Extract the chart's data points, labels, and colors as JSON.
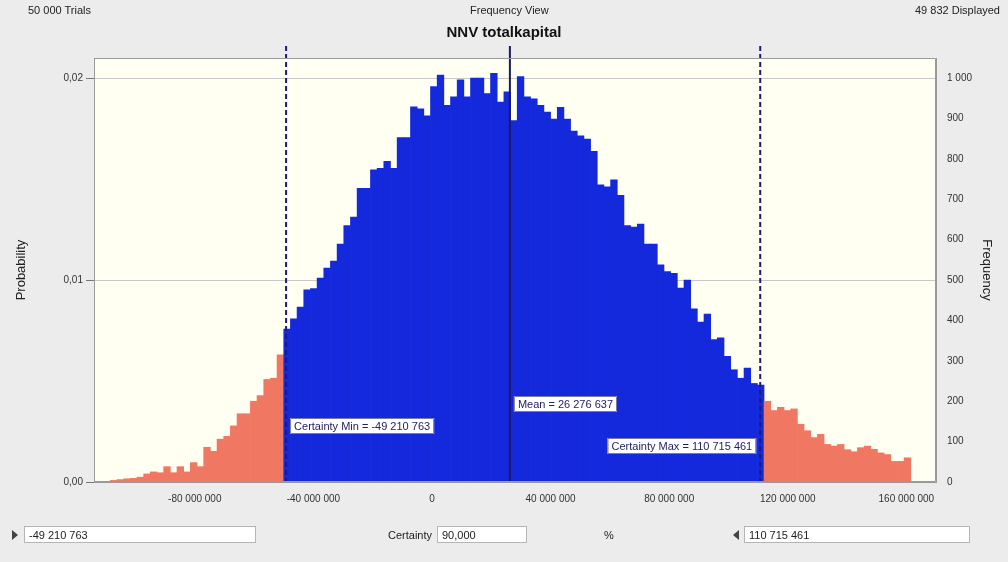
{
  "chart_data": {
    "type": "histogram",
    "title": "NNV totalkapital",
    "ylabel": "Probability",
    "y2label": "Frequency",
    "annotations": [
      "50 000 Trials",
      "Frequency View",
      "49 832 Displayed",
      "-49 210 763",
      "Certainty",
      "90,000",
      "%",
      "110 715 461"
    ],
    "bins": [
      -108500000,
      -106250000,
      -104000000,
      -101750000,
      -99500000,
      -97250000,
      -95000000,
      -92750000,
      -90500000,
      -88250000,
      -86000000,
      -83750000,
      -81500000,
      -79250000,
      -77000000,
      -74750000,
      -72500000,
      -70250000,
      -68000000,
      -65750000,
      -63500000,
      -61250000,
      -59000000,
      -56750000,
      -54500000,
      -52250000,
      -50000000,
      -47750000,
      -45500000,
      -43250000,
      -41000000,
      -38750000,
      -36500000,
      -34250000,
      -32000000,
      -29750000,
      -27500000,
      -25250000,
      -23000000,
      -20750000,
      -18500000,
      -16250000,
      -14000000,
      -11750000,
      -9500000,
      -7250000,
      -5000000,
      -2750000,
      -500000,
      1750000,
      4000000,
      6250000,
      8500000,
      10750000,
      13000000,
      15250000,
      17500000,
      19750000,
      22000000,
      24250000,
      26500000,
      28750000,
      31000000,
      33250000,
      35500000,
      37750000,
      40000000,
      42250000,
      44500000,
      46750000,
      49000000,
      51250000,
      53500000,
      55750000,
      58000000,
      60250000,
      62500000,
      64750000,
      67000000,
      69250000,
      71500000,
      73750000,
      76000000,
      78250000,
      80500000,
      82750000,
      85000000,
      87250000,
      89500000,
      91750000,
      94000000,
      96250000,
      98500000,
      100750000,
      103000000,
      105250000,
      107500000,
      109750000,
      112000000,
      114250000,
      116500000,
      118750000,
      121000000,
      123250000,
      125500000,
      127750000,
      130000000,
      132250000,
      134500000,
      136750000,
      139000000,
      141250000,
      143500000,
      145750000,
      148000000,
      150250000,
      152500000,
      154750000,
      157000000,
      159250000,
      161500000
    ],
    "series": [
      {
        "axis": "y2",
        "values": [
          4,
          6,
          8,
          9,
          12,
          20,
          25,
          23,
          38,
          23,
          38,
          25,
          48,
          38,
          86,
          76,
          106,
          113,
          139,
          169,
          169,
          200,
          214,
          254,
          257,
          315,
          379,
          404,
          433,
          476,
          479,
          505,
          530,
          547,
          589,
          635,
          656,
          727,
          727,
          773,
          777,
          794,
          777,
          853,
          853,
          929,
          924,
          907,
          979,
          1008,
          933,
          954,
          996,
          954,
          1000,
          1000,
          962,
          1012,
          941,
          966,
          895,
          1004,
          954,
          949,
          933,
          916,
          899,
          928,
          899,
          869,
          857,
          849,
          819,
          736,
          731,
          748,
          710,
          635,
          631,
          639,
          589,
          589,
          538,
          521,
          517,
          480,
          500,
          429,
          396,
          416,
          353,
          357,
          311,
          278,
          257,
          282,
          244,
          240,
          200,
          177,
          185,
          177,
          181,
          143,
          127,
          110,
          118,
          93,
          89,
          93,
          80,
          75,
          85,
          89,
          81,
          72,
          68,
          51,
          51,
          60
        ],
        "colors": [
          "#f07862",
          "#f07862",
          "#f07862",
          "#f07862",
          "#f07862",
          "#f07862",
          "#f07862",
          "#f07862",
          "#f07862",
          "#f07862",
          "#f07862",
          "#f07862",
          "#f07862",
          "#f07862",
          "#f07862",
          "#f07862",
          "#f07862",
          "#f07862",
          "#f07862",
          "#f07862",
          "#f07862",
          "#f07862",
          "#f07862",
          "#f07862",
          "#f07862",
          "#f07862",
          "#1428dc",
          "#1428dc",
          "#1428dc",
          "#1428dc",
          "#1428dc",
          "#1428dc",
          "#1428dc",
          "#1428dc",
          "#1428dc",
          "#1428dc",
          "#1428dc",
          "#1428dc",
          "#1428dc",
          "#1428dc",
          "#1428dc",
          "#1428dc",
          "#1428dc",
          "#1428dc",
          "#1428dc",
          "#1428dc",
          "#1428dc",
          "#1428dc",
          "#1428dc",
          "#1428dc",
          "#1428dc",
          "#1428dc",
          "#1428dc",
          "#1428dc",
          "#1428dc",
          "#1428dc",
          "#1428dc",
          "#1428dc",
          "#1428dc",
          "#1428dc",
          "#1428dc",
          "#1428dc",
          "#1428dc",
          "#1428dc",
          "#1428dc",
          "#1428dc",
          "#1428dc",
          "#1428dc",
          "#1428dc",
          "#1428dc",
          "#1428dc",
          "#1428dc",
          "#1428dc",
          "#1428dc",
          "#1428dc",
          "#1428dc",
          "#1428dc",
          "#1428dc",
          "#1428dc",
          "#1428dc",
          "#1428dc",
          "#1428dc",
          "#1428dc",
          "#1428dc",
          "#1428dc",
          "#1428dc",
          "#1428dc",
          "#1428dc",
          "#1428dc",
          "#1428dc",
          "#1428dc",
          "#1428dc",
          "#1428dc",
          "#1428dc",
          "#1428dc",
          "#1428dc",
          "#1428dc",
          "#1428dc",
          "#f07862",
          "#f07862",
          "#f07862",
          "#f07862",
          "#f07862",
          "#f07862",
          "#f07862",
          "#f07862",
          "#f07862",
          "#f07862",
          "#f07862",
          "#f07862",
          "#f07862",
          "#f07862",
          "#f07862",
          "#f07862",
          "#f07862",
          "#f07862",
          "#f07862",
          "#f07862",
          "#f07862",
          "#f07862"
        ]
      }
    ],
    "xlim": [
      -114000000,
      170000000
    ],
    "xticks": [
      {
        "value": -80000000,
        "label": "-80 000 000"
      },
      {
        "value": -40000000,
        "label": "-40 000 000"
      },
      {
        "value": 0,
        "label": "0"
      },
      {
        "value": 40000000,
        "label": "40 000 000"
      },
      {
        "value": 80000000,
        "label": "80 000 000"
      },
      {
        "value": 120000000,
        "label": "120 000 000"
      },
      {
        "value": 160000000,
        "label": "160 000 000"
      }
    ],
    "ylim": [
      0,
      0.021
    ],
    "yticks": [
      {
        "value": 0,
        "label": "0,00"
      },
      {
        "value": 0.01,
        "label": "0,01"
      },
      {
        "value": 0.02,
        "label": "0,02"
      }
    ],
    "y2lim": [
      0,
      1050
    ],
    "y2ticks": [
      0,
      100,
      200,
      300,
      400,
      500,
      600,
      700,
      800,
      900,
      {
        "value": 1000,
        "label": "1 000"
      }
    ],
    "grid": "y",
    "ref_lines": [
      {
        "axis": "x",
        "value": -49210763,
        "label": "Certainty Min = -49 210 763",
        "color": "#1a1a80",
        "line_style": "dashed"
      },
      {
        "axis": "x",
        "value": 26276637,
        "label": "Mean = 26 276 637",
        "color": "#1a1a60",
        "line_style": "solid"
      },
      {
        "axis": "x",
        "value": 110715461,
        "label": "Certainty Max = 110 715 461",
        "color": "#1a1a80",
        "line_style": "dashed"
      }
    ]
  }
}
